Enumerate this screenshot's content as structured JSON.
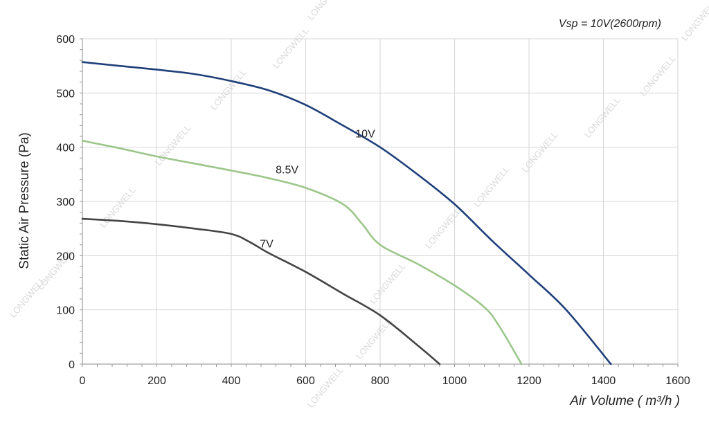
{
  "chart_data": {
    "type": "line",
    "annotation": "Vsp = 10V(2600rpm)",
    "xlabel": "Air Volume ( m³/h )",
    "ylabel": "Static Air Pressure  (Pa)",
    "xlim": [
      0,
      1600
    ],
    "ylim": [
      0,
      600
    ],
    "xticks": [
      "0",
      "200",
      "400",
      "600",
      "800",
      "1000",
      "1200",
      "1400",
      "1600"
    ],
    "yticks": [
      "0",
      "100",
      "200",
      "300",
      "400",
      "500",
      "600"
    ],
    "grid": true,
    "watermark": "LONGWELL",
    "series": [
      {
        "name": "10V",
        "color": "#1f3f7a",
        "x": [
          0,
          100,
          200,
          300,
          400,
          500,
          600,
          700,
          800,
          900,
          1000,
          1100,
          1200,
          1300,
          1420
        ],
        "y": [
          557,
          550,
          543,
          535,
          522,
          505,
          478,
          440,
          400,
          350,
          295,
          228,
          165,
          100,
          0
        ]
      },
      {
        "name": "8.5V",
        "color": "#9cc68a",
        "x": [
          0,
          100,
          200,
          300,
          400,
          500,
          600,
          700,
          750,
          800,
          900,
          1000,
          1080,
          1120,
          1180
        ],
        "y": [
          412,
          398,
          383,
          370,
          357,
          343,
          325,
          295,
          260,
          220,
          185,
          145,
          105,
          70,
          0
        ]
      },
      {
        "name": "7V",
        "color": "#444444",
        "x": [
          0,
          100,
          200,
          300,
          400,
          450,
          500,
          600,
          700,
          800,
          900,
          960
        ],
        "y": [
          268,
          264,
          258,
          250,
          240,
          225,
          205,
          170,
          130,
          90,
          35,
          0
        ]
      }
    ],
    "series_label_positions": [
      {
        "name": "10V",
        "x": 760,
        "y": 418
      },
      {
        "name": "8.5V",
        "x": 550,
        "y": 352
      },
      {
        "name": "7V",
        "x": 495,
        "y": 215
      }
    ]
  }
}
